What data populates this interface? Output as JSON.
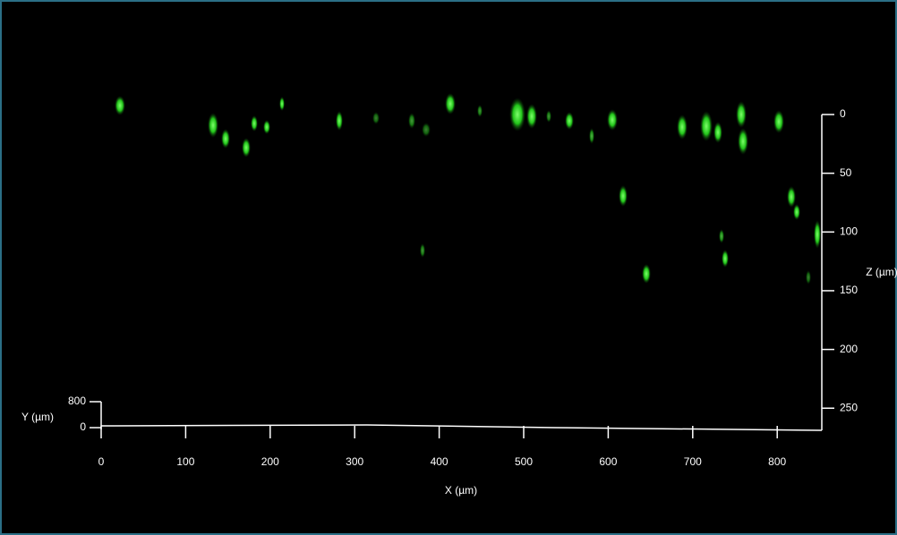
{
  "x_axis": {
    "label": "X (µm)",
    "ticks": [
      0,
      100,
      200,
      300,
      400,
      500,
      600,
      700,
      800
    ]
  },
  "z_axis": {
    "label": "Z (µm)",
    "ticks": [
      0,
      50,
      100,
      150,
      200,
      250
    ]
  },
  "y_axis": {
    "label": "Y (µm)",
    "ticks": [
      0,
      800
    ]
  }
}
